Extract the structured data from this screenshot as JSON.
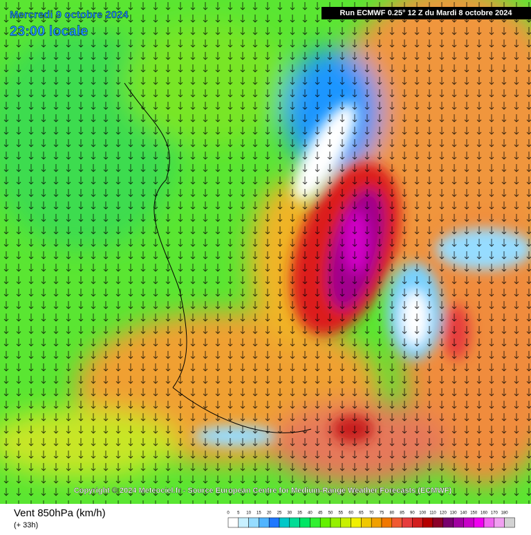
{
  "header": {
    "date": "Mercredi 9 octobre 2024",
    "time": "23:00 locale",
    "run": "Run ECMWF 0.25° 12 Z du Mardi 8 octobre 2024"
  },
  "copyright": "Copyright © 2024 Meteociel.fr - Source European Centre for Medium-Range Weather Forecasts (ECMWF)",
  "footer": {
    "title": "Vent 850hPa (km/h)",
    "lead": "(+ 33h)"
  },
  "legend": {
    "stops": [
      0,
      5,
      10,
      15,
      20,
      25,
      30,
      35,
      40,
      45,
      50,
      55,
      60,
      65,
      70,
      75,
      80,
      85,
      90,
      100,
      110,
      120,
      130,
      140,
      150,
      160,
      170,
      180
    ],
    "colors": [
      "#ffffff",
      "#c8f0ff",
      "#96dcff",
      "#50b4ff",
      "#1e78ff",
      "#00c8c8",
      "#00dc96",
      "#00e664",
      "#32f032",
      "#64f000",
      "#96f000",
      "#c8f000",
      "#f0f000",
      "#f0c800",
      "#f0a000",
      "#f07800",
      "#f05a32",
      "#e63c3c",
      "#d21e1e",
      "#b40000",
      "#8c0028",
      "#78006e",
      "#a000a0",
      "#c800c8",
      "#f000f0",
      "#f064f0",
      "#f0a0f0",
      "#d2d2d2"
    ]
  }
}
